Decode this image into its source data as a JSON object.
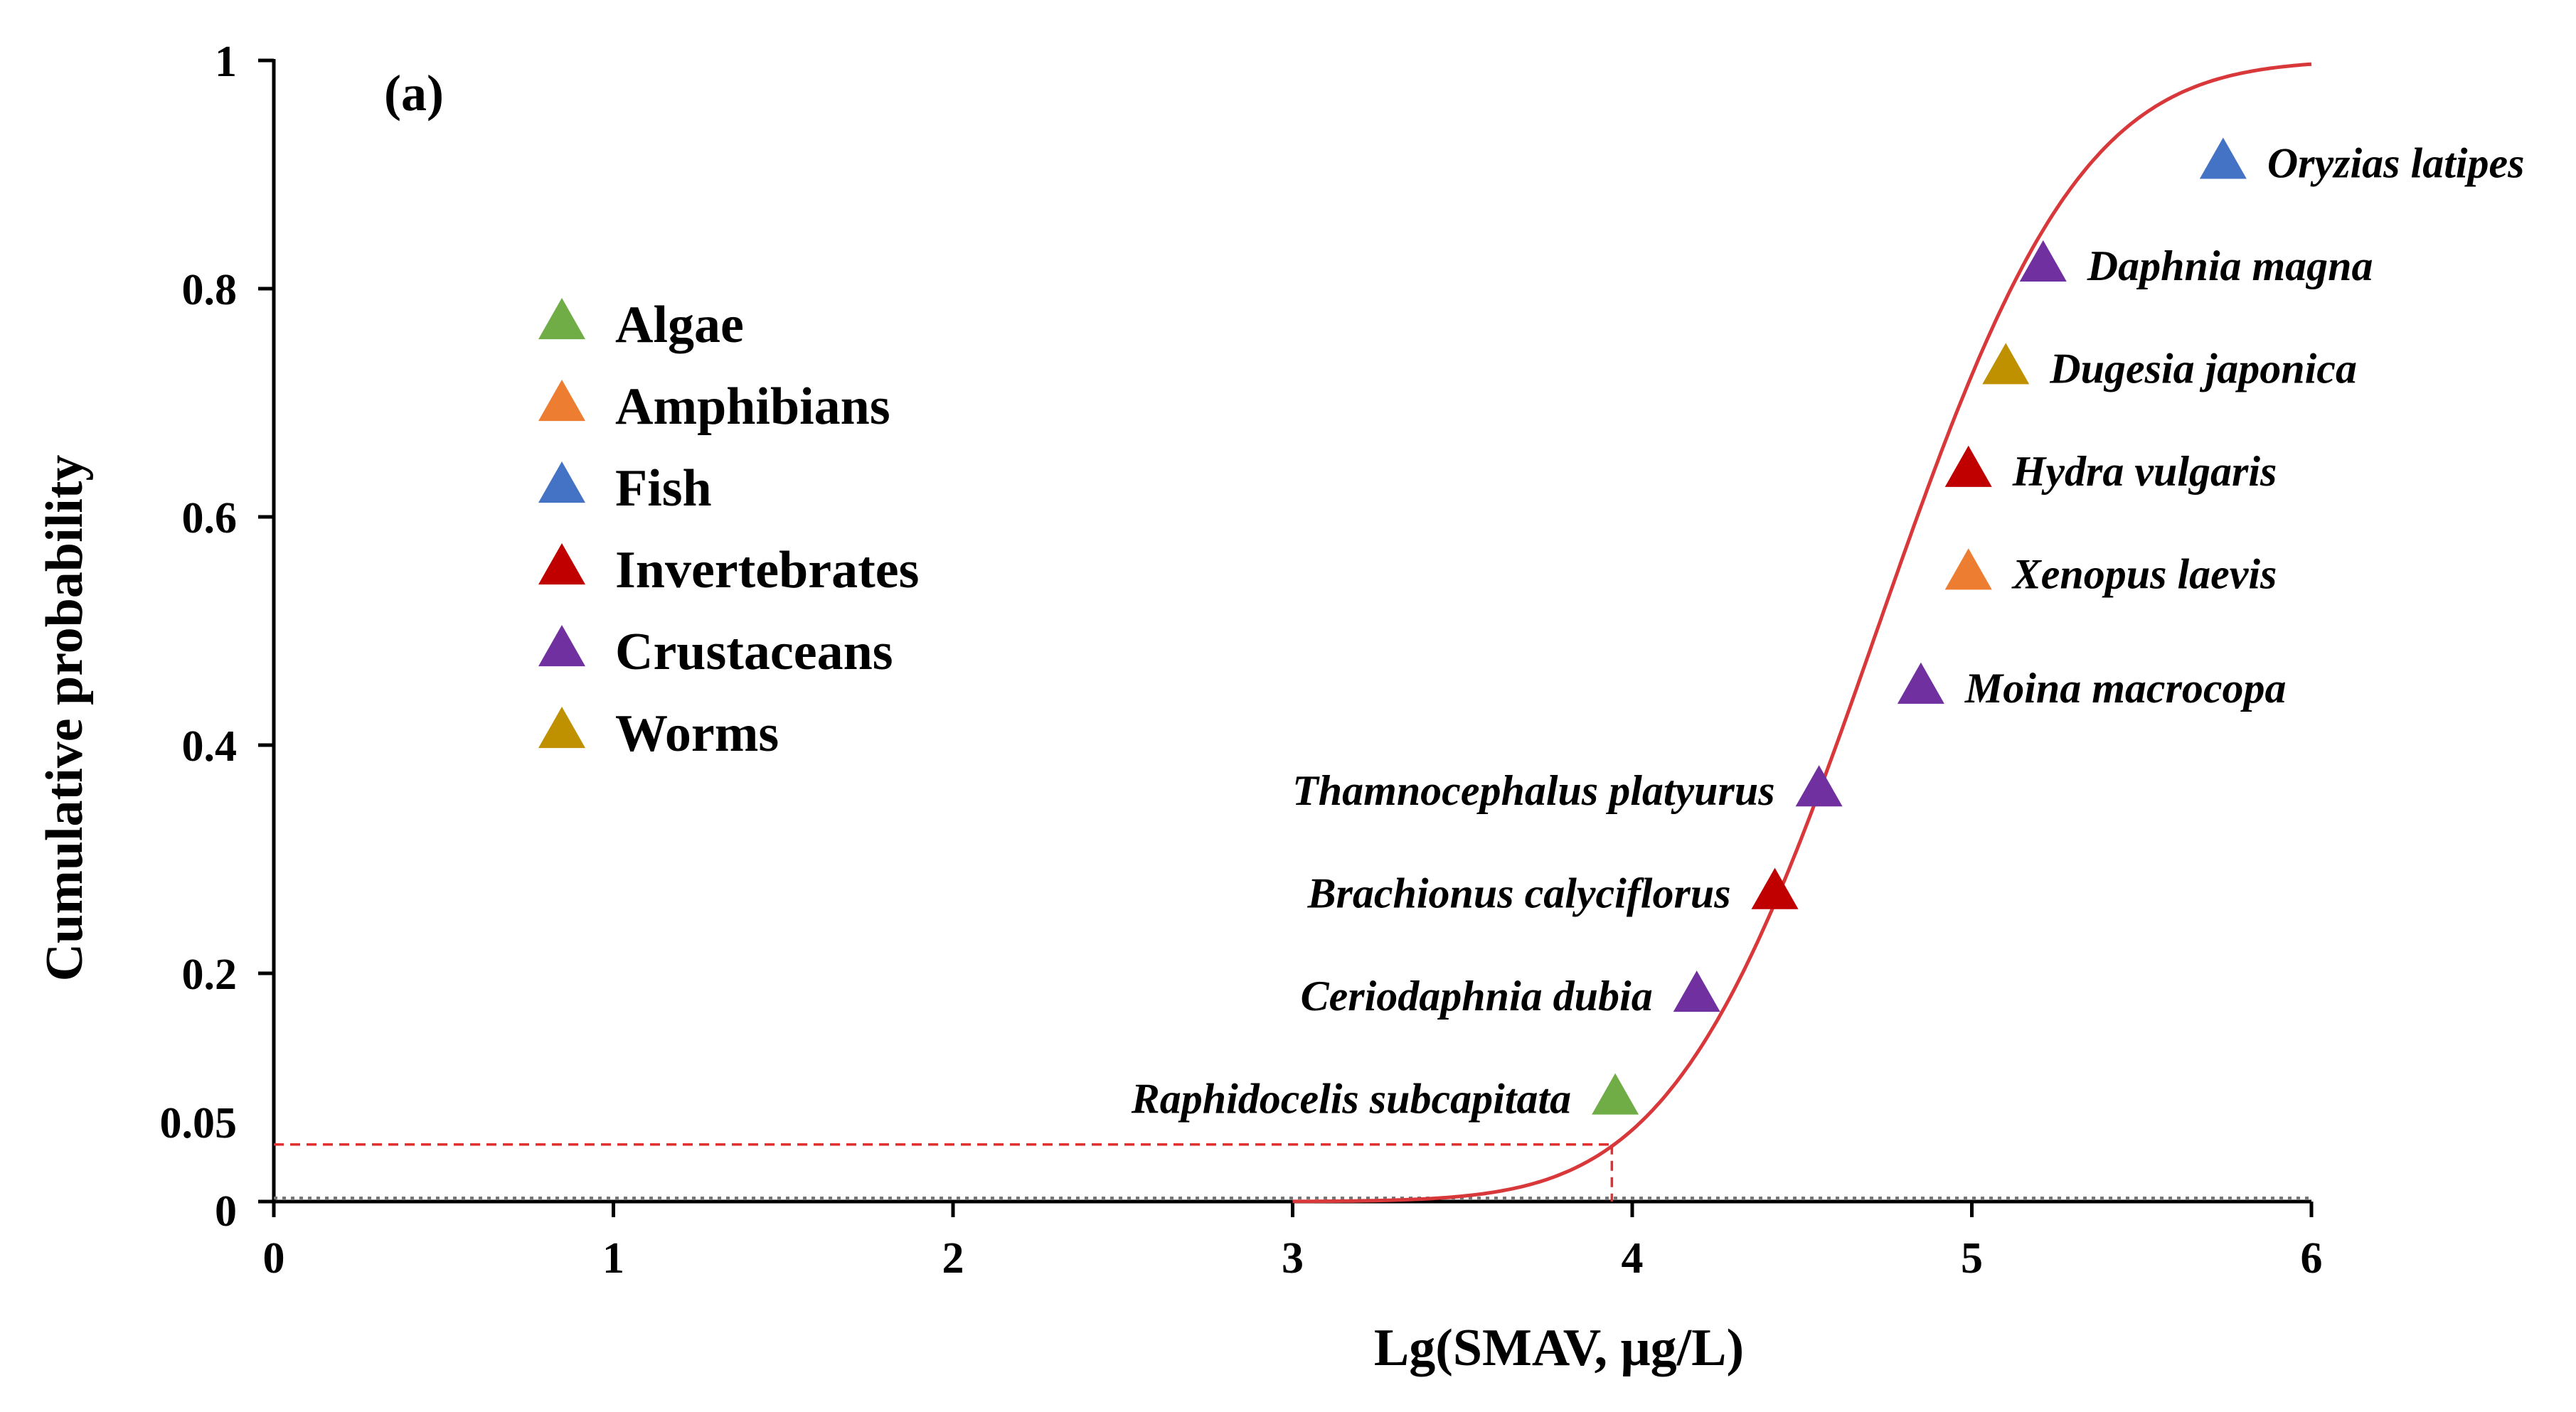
{
  "chart_data": {
    "type": "scatter",
    "panel_label": "(a)",
    "xlabel": "Lg(SMAV, μg/L)",
    "ylabel": "Cumulative probability",
    "xlim": [
      0,
      6
    ],
    "ylim": [
      0,
      1
    ],
    "x_ticks": [
      "0",
      "1",
      "2",
      "3",
      "4",
      "5",
      "6"
    ],
    "y_ticks": [
      {
        "value": 0,
        "label": "0"
      },
      {
        "value": 0.05,
        "label": "0.05"
      },
      {
        "value": 0.2,
        "label": "0.2"
      },
      {
        "value": 0.4,
        "label": "0.4"
      },
      {
        "value": 0.6,
        "label": "0.6"
      },
      {
        "value": 0.8,
        "label": "0.8"
      },
      {
        "value": 1,
        "label": "1"
      }
    ],
    "groups": [
      {
        "name": "Algae",
        "color": "#70ad47"
      },
      {
        "name": "Amphibians",
        "color": "#ed7d31"
      },
      {
        "name": "Fish",
        "color": "#4472c4"
      },
      {
        "name": "Invertebrates",
        "color": "#c00000"
      },
      {
        "name": "Crustaceans",
        "color": "#7030a0"
      },
      {
        "name": "Worms",
        "color": "#bf9000"
      }
    ],
    "points": [
      {
        "species": "Raphidocelis subcapitata",
        "group": "Algae",
        "x": 3.95,
        "y": 0.09,
        "label_side": "left"
      },
      {
        "species": "Ceriodaphnia dubia",
        "group": "Crustaceans",
        "x": 4.19,
        "y": 0.18,
        "label_side": "left"
      },
      {
        "species": "Brachionus calyciflorus",
        "group": "Invertebrates",
        "x": 4.42,
        "y": 0.27,
        "label_side": "left"
      },
      {
        "species": "Thamnocephalus platyurus",
        "group": "Crustaceans",
        "x": 4.55,
        "y": 0.36,
        "label_side": "left"
      },
      {
        "species": "Moina macrocopa",
        "group": "Crustaceans",
        "x": 4.85,
        "y": 0.45,
        "label_side": "right"
      },
      {
        "species": "Xenopus laevis",
        "group": "Amphibians",
        "x": 4.99,
        "y": 0.55,
        "label_side": "right"
      },
      {
        "species": "Hydra vulgaris",
        "group": "Invertebrates",
        "x": 4.99,
        "y": 0.64,
        "label_side": "right"
      },
      {
        "species": "Dugesia japonica",
        "group": "Worms",
        "x": 5.1,
        "y": 0.73,
        "label_side": "right"
      },
      {
        "species": "Daphnia magna",
        "group": "Crustaceans",
        "x": 5.21,
        "y": 0.82,
        "label_side": "right"
      },
      {
        "species": "Oryzias latipes",
        "group": "Fish",
        "x": 5.74,
        "y": 0.91,
        "label_side": "right"
      }
    ],
    "fitted_curve": {
      "type": "cumulative-normal",
      "mean_log": 4.72,
      "sd_log": 0.47,
      "x_range": [
        3.0,
        6.0
      ],
      "color": "#d9383a"
    },
    "hc5_guide": {
      "x": 3.94,
      "y": 0.05,
      "color": "#e03030"
    }
  }
}
